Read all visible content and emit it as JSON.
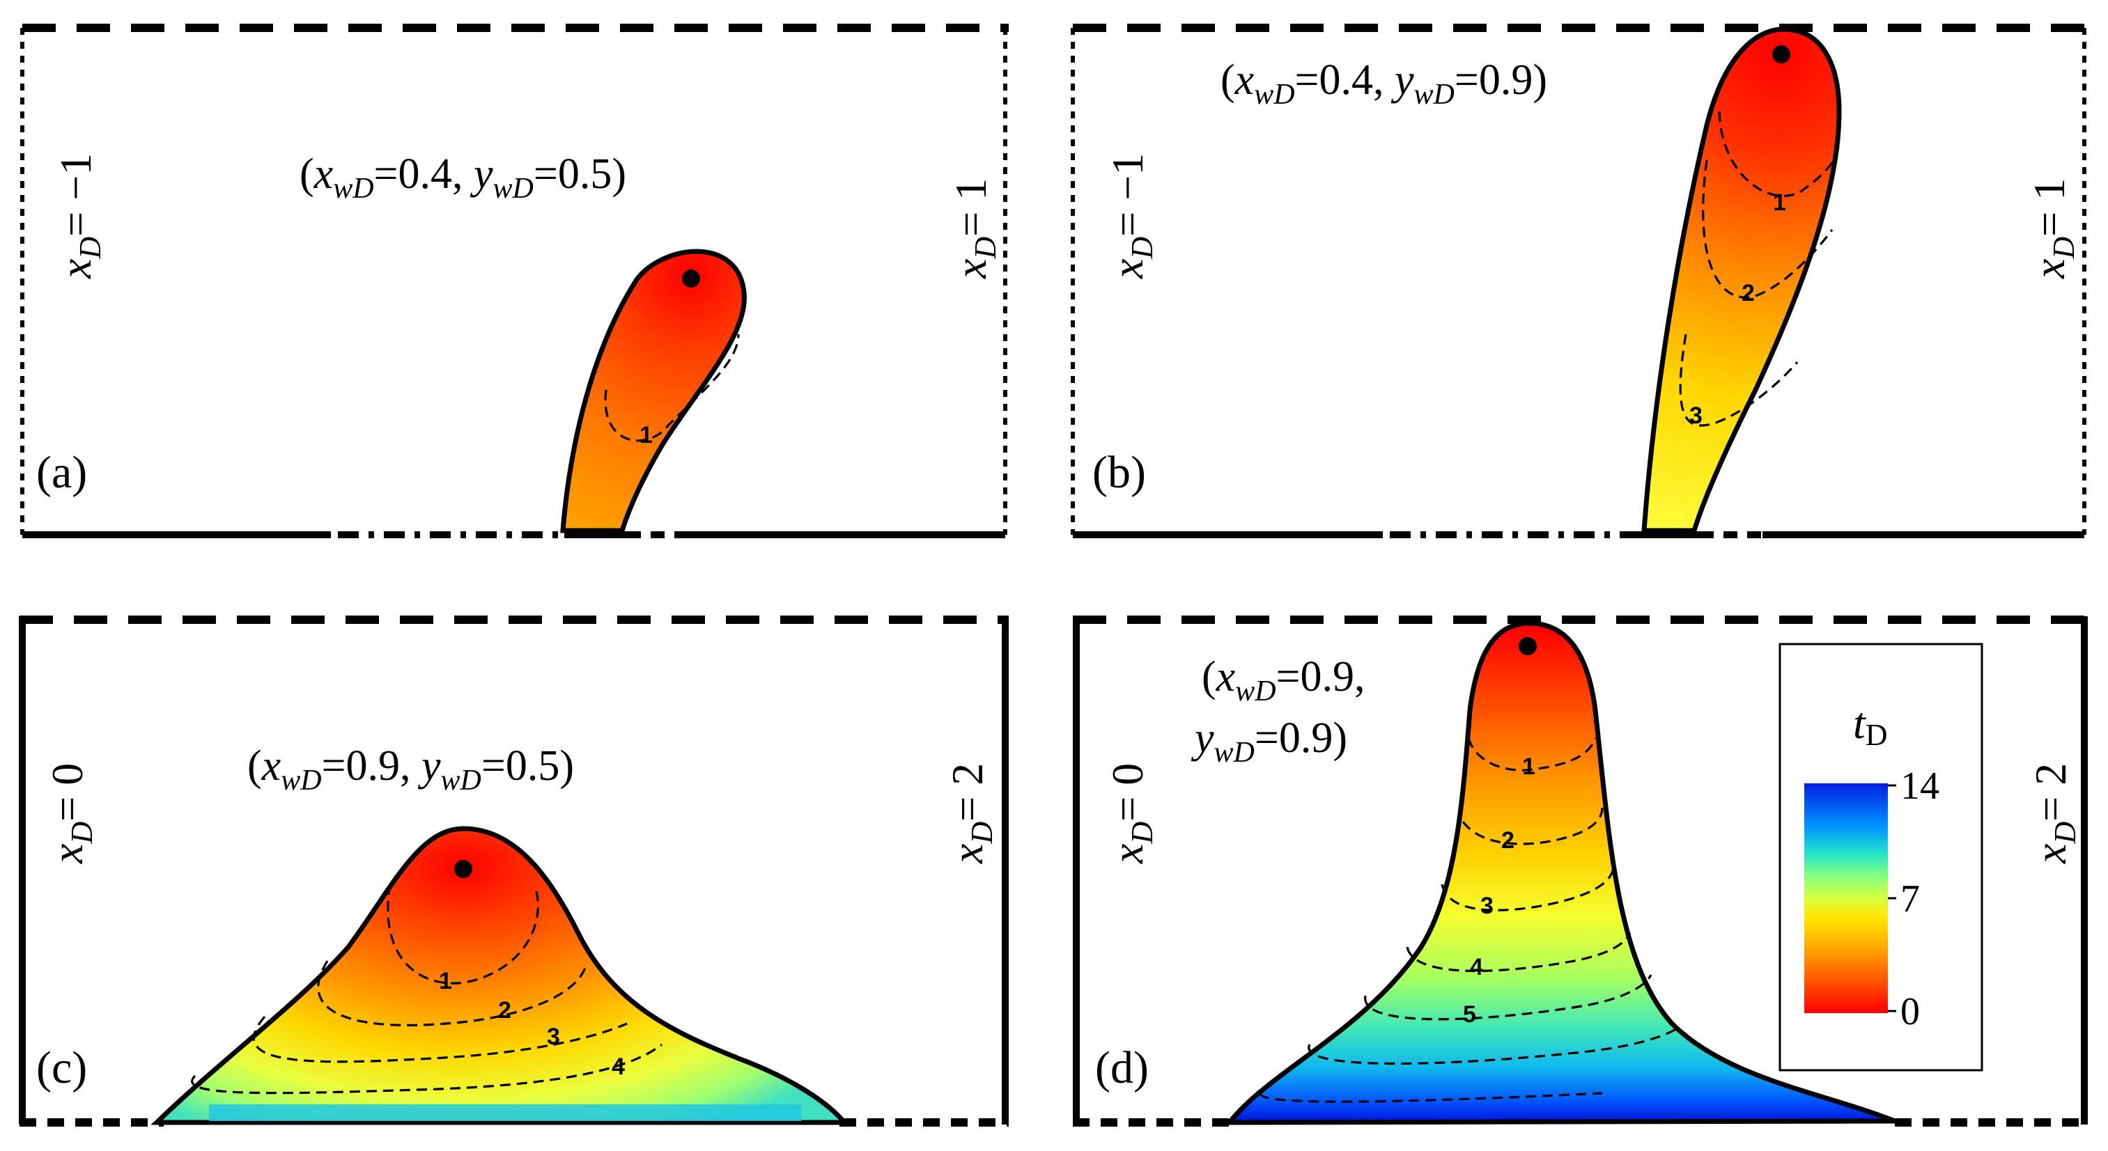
{
  "chart_data": {
    "type": "heatmap",
    "colorbar": {
      "title_var": "t",
      "title_sub": "D",
      "ticks": [
        "14",
        "7",
        "0"
      ],
      "range": [
        0,
        14
      ],
      "colors": [
        "#ff0000",
        "#ff6a00",
        "#ffd000",
        "#ffff40",
        "#a0ff60",
        "#30e0c0",
        "#0090ff",
        "#0000c8"
      ]
    },
    "panels": [
      {
        "label": "(a)",
        "well": {
          "var1": "x",
          "sub1": "wD",
          "val1": "0.4",
          "var2": "y",
          "sub2": "wD",
          "val2": "0.5"
        },
        "left_boundary": {
          "var": "x",
          "sub": "D",
          "value": "−1"
        },
        "right_boundary": {
          "var": "x",
          "sub": "D",
          "value": "1"
        },
        "contour_labels": [
          "1"
        ]
      },
      {
        "label": "(b)",
        "well": {
          "var1": "x",
          "sub1": "wD",
          "val1": "0.4",
          "var2": "y",
          "sub2": "wD",
          "val2": "0.9"
        },
        "left_boundary": {
          "var": "x",
          "sub": "D",
          "value": "−1"
        },
        "right_boundary": {
          "var": "x",
          "sub": "D",
          "value": "1"
        },
        "contour_labels": [
          "1",
          "2",
          "3"
        ]
      },
      {
        "label": "(c)",
        "well": {
          "var1": "x",
          "sub1": "wD",
          "val1": "0.9",
          "var2": "y",
          "sub2": "wD",
          "val2": "0.5"
        },
        "left_boundary": {
          "var": "x",
          "sub": "D",
          "value": "0"
        },
        "right_boundary": {
          "var": "x",
          "sub": "D",
          "value": "2"
        },
        "contour_labels": [
          "1",
          "2",
          "3",
          "4"
        ]
      },
      {
        "label": "(d)",
        "well": {
          "var1": "x",
          "sub1": "wD",
          "val1": "0.9",
          "var2": "y",
          "sub2": "wD",
          "val2": "0.9"
        },
        "left_boundary": {
          "var": "x",
          "sub": "D",
          "value": "0"
        },
        "right_boundary": {
          "var": "x",
          "sub": "D",
          "value": "2"
        },
        "contour_labels": [
          "1",
          "2",
          "3",
          "4",
          "5"
        ]
      }
    ]
  }
}
